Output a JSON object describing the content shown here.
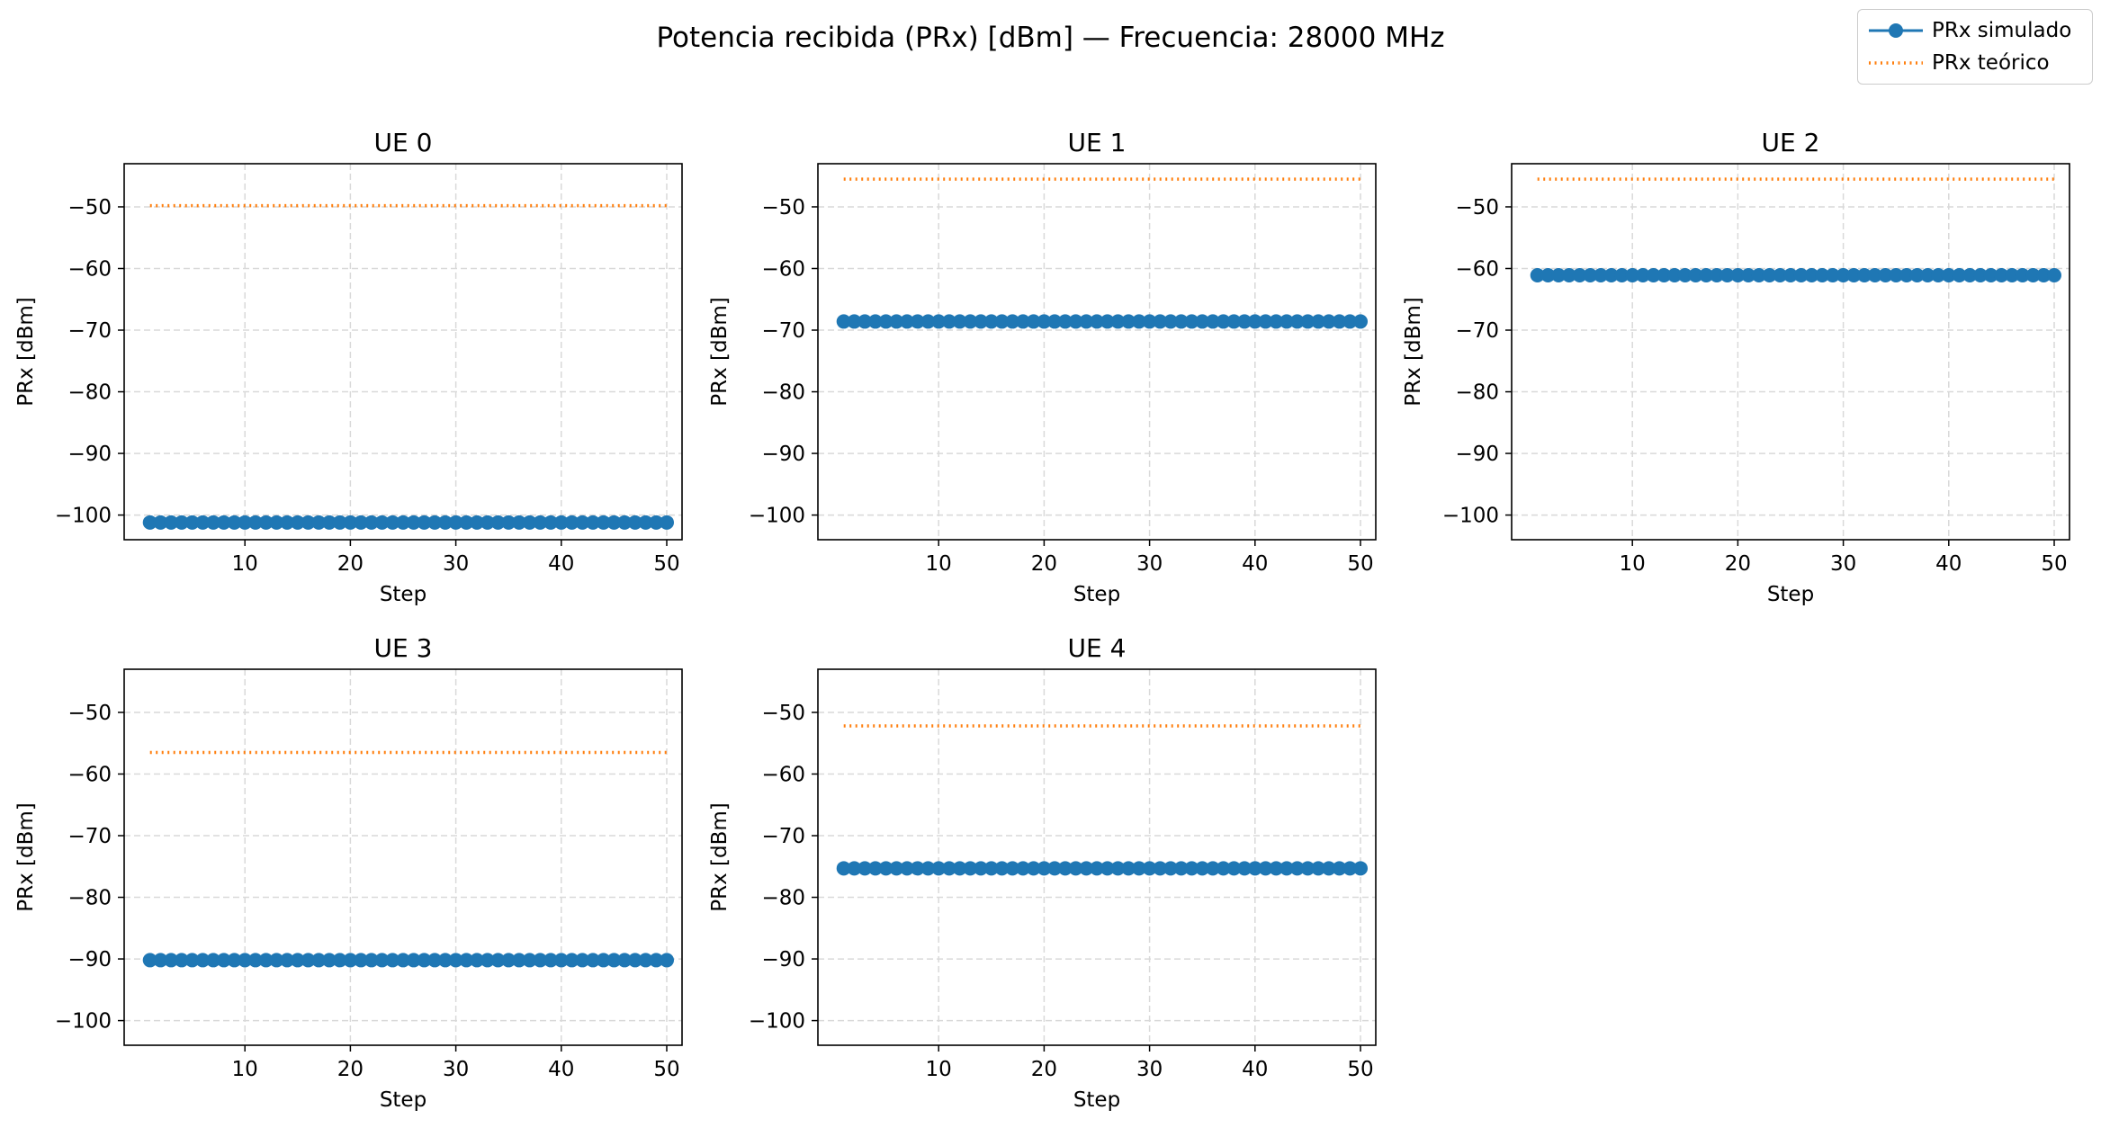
{
  "suptitle": "Potencia recibida (PRx) [dBm] — Frecuencia: 28000 MHz",
  "legend": {
    "simulated": "PRx simulado",
    "theoretical": "PRx teórico"
  },
  "colors": {
    "simulated": "#1f77b4",
    "theoretical": "#ff7f0e",
    "grid": "#d9d9d9"
  },
  "chart_data": [
    {
      "type": "line",
      "title": "UE 0",
      "xlabel": "Step",
      "ylabel": "PRx [dBm]",
      "xlim": [
        -1.45,
        51.45
      ],
      "ylim": [
        -104,
        -43
      ],
      "xticks": [
        10,
        20,
        30,
        40,
        50
      ],
      "yticks": [
        -50,
        -60,
        -70,
        -80,
        -90,
        -100
      ],
      "ytick_labels": [
        "−50",
        "−60",
        "−70",
        "−80",
        "−90",
        "−100"
      ],
      "grid": true,
      "x": {
        "start": 1,
        "end": 50,
        "step": 1
      },
      "series": [
        {
          "name": "PRx simulado",
          "style": "line-marker",
          "constant_value": -101.2
        },
        {
          "name": "PRx teórico",
          "style": "dotted",
          "constant_value": -49.8
        }
      ]
    },
    {
      "type": "line",
      "title": "UE 1",
      "xlabel": "Step",
      "ylabel": "PRx [dBm]",
      "xlim": [
        -1.45,
        51.45
      ],
      "ylim": [
        -104,
        -43
      ],
      "xticks": [
        10,
        20,
        30,
        40,
        50
      ],
      "yticks": [
        -50,
        -60,
        -70,
        -80,
        -90,
        -100
      ],
      "ytick_labels": [
        "−50",
        "−60",
        "−70",
        "−80",
        "−90",
        "−100"
      ],
      "grid": true,
      "x": {
        "start": 1,
        "end": 50,
        "step": 1
      },
      "series": [
        {
          "name": "PRx simulado",
          "style": "line-marker",
          "constant_value": -68.6
        },
        {
          "name": "PRx teórico",
          "style": "dotted",
          "constant_value": -45.5
        }
      ]
    },
    {
      "type": "line",
      "title": "UE 2",
      "xlabel": "Step",
      "ylabel": "PRx [dBm]",
      "xlim": [
        -1.45,
        51.45
      ],
      "ylim": [
        -104,
        -43
      ],
      "xticks": [
        10,
        20,
        30,
        40,
        50
      ],
      "yticks": [
        -50,
        -60,
        -70,
        -80,
        -90,
        -100
      ],
      "ytick_labels": [
        "−50",
        "−60",
        "−70",
        "−80",
        "−90",
        "−100"
      ],
      "grid": true,
      "x": {
        "start": 1,
        "end": 50,
        "step": 1
      },
      "series": [
        {
          "name": "PRx simulado",
          "style": "line-marker",
          "constant_value": -61.1
        },
        {
          "name": "PRx teórico",
          "style": "dotted",
          "constant_value": -45.5
        }
      ]
    },
    {
      "type": "line",
      "title": "UE 3",
      "xlabel": "Step",
      "ylabel": "PRx [dBm]",
      "xlim": [
        -1.45,
        51.45
      ],
      "ylim": [
        -104,
        -43
      ],
      "xticks": [
        10,
        20,
        30,
        40,
        50
      ],
      "yticks": [
        -50,
        -60,
        -70,
        -80,
        -90,
        -100
      ],
      "ytick_labels": [
        "−50",
        "−60",
        "−70",
        "−80",
        "−90",
        "−100"
      ],
      "grid": true,
      "x": {
        "start": 1,
        "end": 50,
        "step": 1
      },
      "series": [
        {
          "name": "PRx simulado",
          "style": "line-marker",
          "constant_value": -90.2
        },
        {
          "name": "PRx teórico",
          "style": "dotted",
          "constant_value": -56.5
        }
      ]
    },
    {
      "type": "line",
      "title": "UE 4",
      "xlabel": "Step",
      "ylabel": "PRx [dBm]",
      "xlim": [
        -1.45,
        51.45
      ],
      "ylim": [
        -104,
        -43
      ],
      "xticks": [
        10,
        20,
        30,
        40,
        50
      ],
      "yticks": [
        -50,
        -60,
        -70,
        -80,
        -90,
        -100
      ],
      "ytick_labels": [
        "−50",
        "−60",
        "−70",
        "−80",
        "−90",
        "−100"
      ],
      "grid": true,
      "x": {
        "start": 1,
        "end": 50,
        "step": 1
      },
      "series": [
        {
          "name": "PRx simulado",
          "style": "line-marker",
          "constant_value": -75.3
        },
        {
          "name": "PRx teórico",
          "style": "dotted",
          "constant_value": -52.2
        }
      ]
    }
  ]
}
